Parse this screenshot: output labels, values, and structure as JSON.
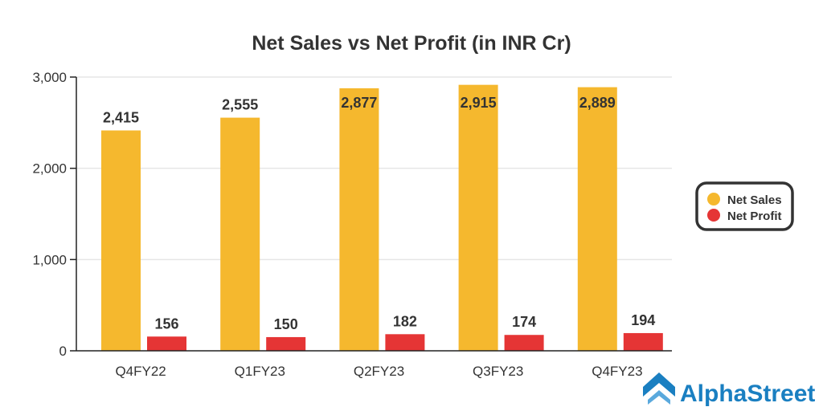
{
  "chart_data": {
    "type": "bar",
    "title": "Net Sales vs Net Profit (in INR Cr)",
    "categories": [
      "Q4FY22",
      "Q1FY23",
      "Q2FY23",
      "Q3FY23",
      "Q4FY23"
    ],
    "series": [
      {
        "name": "Net Sales",
        "color": "#f5b82e",
        "values": [
          2415,
          2555,
          2877,
          2915,
          2889
        ],
        "labels": [
          "2,415",
          "2,555",
          "2,877",
          "2,915",
          "2,889"
        ]
      },
      {
        "name": "Net Profit",
        "color": "#e53535",
        "values": [
          156,
          150,
          182,
          174,
          194
        ],
        "labels": [
          "156",
          "150",
          "182",
          "174",
          "194"
        ]
      }
    ],
    "ylim": [
      0,
      3000
    ],
    "yticks": [
      0,
      1000,
      2000,
      3000
    ],
    "ytick_labels": [
      "0",
      "1,000",
      "2,000",
      "3,000"
    ],
    "xlabel": "",
    "ylabel": "",
    "grid": true,
    "legend_position": "right"
  },
  "branding": {
    "logo_text": "AlphaStreet",
    "color": "#1a7fc1"
  }
}
